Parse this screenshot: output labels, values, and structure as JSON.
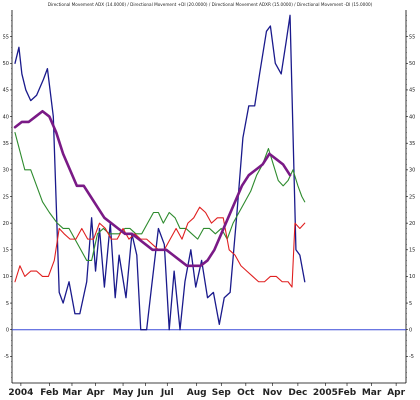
{
  "chart_data": {
    "type": "line",
    "title": "Directional Movement ADX (14.0000) / Directional Movement +DI (20.0000) / Directional Movement ADXR (15.0000) / Directional Movement -DI (15.0000)",
    "ylim": [
      -10,
      60
    ],
    "y_ticks": [
      -5,
      0,
      5,
      10,
      15,
      20,
      25,
      30,
      35,
      40,
      45,
      50,
      55
    ],
    "y_tick_labels": [
      "-5",
      "0",
      "5",
      "10",
      "15",
      "20",
      "25",
      "30",
      "35",
      "40",
      "45",
      "50",
      "55"
    ],
    "x_labels": [
      {
        "t": 0.6,
        "text": "2004"
      },
      {
        "t": 3.5,
        "text": "Feb"
      },
      {
        "t": 5.8,
        "text": "Mar"
      },
      {
        "t": 8.2,
        "text": "Apr"
      },
      {
        "t": 11.0,
        "text": "May"
      },
      {
        "t": 13.3,
        "text": "Jun"
      },
      {
        "t": 15.5,
        "text": "Jul"
      },
      {
        "t": 18.5,
        "text": "Aug"
      },
      {
        "t": 21.0,
        "text": "Sep"
      },
      {
        "t": 23.5,
        "text": "Oct"
      },
      {
        "t": 26.2,
        "text": "Nov"
      },
      {
        "t": 28.8,
        "text": "Dec"
      },
      {
        "t": 31.6,
        "text": "2005"
      },
      {
        "t": 33.8,
        "text": "Feb"
      },
      {
        "t": 36.3,
        "text": "Mar"
      },
      {
        "t": 38.8,
        "text": "Apr"
      }
    ],
    "x_range": [
      0,
      39.5
    ],
    "zero_line": 0,
    "series": [
      {
        "color": "#1a1a8c",
        "width": 1.3,
        "points": [
          [
            0,
            50
          ],
          [
            0.4,
            53
          ],
          [
            0.7,
            48
          ],
          [
            1.1,
            45
          ],
          [
            1.6,
            43
          ],
          [
            2.2,
            44
          ],
          [
            2.9,
            47
          ],
          [
            3.3,
            49
          ],
          [
            3.9,
            40
          ],
          [
            4.5,
            7
          ],
          [
            4.9,
            5
          ],
          [
            5.5,
            9
          ],
          [
            6.1,
            3
          ],
          [
            6.6,
            3
          ],
          [
            7.3,
            9
          ],
          [
            7.8,
            21
          ],
          [
            8.2,
            11
          ],
          [
            8.6,
            19
          ],
          [
            9.1,
            8
          ],
          [
            9.7,
            20
          ],
          [
            10.2,
            6
          ],
          [
            10.6,
            14
          ],
          [
            11.3,
            6
          ],
          [
            11.9,
            18
          ],
          [
            12.4,
            14
          ],
          [
            12.8,
            0
          ],
          [
            13.4,
            0
          ],
          [
            13.9,
            8
          ],
          [
            14.6,
            19
          ],
          [
            15.2,
            16
          ],
          [
            15.7,
            0
          ],
          [
            16.2,
            11
          ],
          [
            16.8,
            0
          ],
          [
            17.3,
            9
          ],
          [
            17.9,
            15
          ],
          [
            18.4,
            8
          ],
          [
            19.0,
            13
          ],
          [
            19.6,
            6
          ],
          [
            20.2,
            7
          ],
          [
            20.8,
            1
          ],
          [
            21.3,
            6
          ],
          [
            21.9,
            7
          ],
          [
            22.6,
            22
          ],
          [
            23.2,
            36
          ],
          [
            23.8,
            42
          ],
          [
            24.4,
            42
          ],
          [
            24.9,
            48
          ],
          [
            25.6,
            56
          ],
          [
            26.0,
            57
          ],
          [
            26.5,
            50
          ],
          [
            27.1,
            48
          ],
          [
            27.6,
            54
          ],
          [
            28.0,
            59
          ],
          [
            28.6,
            15
          ],
          [
            29.0,
            14
          ],
          [
            29.5,
            9
          ]
        ]
      },
      {
        "color": "#2e8b2e",
        "width": 1.1,
        "points": [
          [
            0,
            37
          ],
          [
            1.0,
            30
          ],
          [
            1.6,
            30
          ],
          [
            2.2,
            27
          ],
          [
            2.8,
            24
          ],
          [
            3.5,
            22
          ],
          [
            4.3,
            20
          ],
          [
            4.9,
            19
          ],
          [
            5.5,
            19
          ],
          [
            6.1,
            17
          ],
          [
            6.7,
            15
          ],
          [
            7.3,
            13
          ],
          [
            7.8,
            13
          ],
          [
            8.4,
            18
          ],
          [
            9.0,
            19
          ],
          [
            9.6,
            18
          ],
          [
            10.1,
            18
          ],
          [
            10.6,
            18
          ],
          [
            11.2,
            19
          ],
          [
            11.7,
            19
          ],
          [
            12.3,
            18
          ],
          [
            12.9,
            18
          ],
          [
            13.5,
            20
          ],
          [
            14.1,
            22
          ],
          [
            14.6,
            22
          ],
          [
            15.1,
            20
          ],
          [
            15.7,
            22
          ],
          [
            16.3,
            21
          ],
          [
            16.8,
            19
          ],
          [
            17.4,
            19
          ],
          [
            18.0,
            18
          ],
          [
            18.6,
            17
          ],
          [
            19.2,
            19
          ],
          [
            19.8,
            19
          ],
          [
            20.4,
            18
          ],
          [
            21.0,
            19
          ],
          [
            21.6,
            17
          ],
          [
            22.2,
            20
          ],
          [
            22.8,
            22
          ],
          [
            23.4,
            24
          ],
          [
            24.0,
            26
          ],
          [
            24.6,
            29
          ],
          [
            25.2,
            31
          ],
          [
            25.8,
            34
          ],
          [
            26.3,
            31
          ],
          [
            26.8,
            28
          ],
          [
            27.3,
            27
          ],
          [
            27.8,
            28
          ],
          [
            28.3,
            30
          ],
          [
            28.8,
            27
          ],
          [
            29.2,
            25
          ],
          [
            29.5,
            24
          ]
        ]
      },
      {
        "color": "#e02020",
        "width": 1.1,
        "points": [
          [
            0,
            9
          ],
          [
            0.5,
            12
          ],
          [
            1.0,
            10
          ],
          [
            1.6,
            11
          ],
          [
            2.2,
            11
          ],
          [
            2.8,
            10
          ],
          [
            3.4,
            10
          ],
          [
            4.0,
            13
          ],
          [
            4.5,
            19
          ],
          [
            5.0,
            18
          ],
          [
            5.6,
            17
          ],
          [
            6.2,
            17
          ],
          [
            6.8,
            19
          ],
          [
            7.4,
            17
          ],
          [
            8.0,
            17
          ],
          [
            8.6,
            20
          ],
          [
            9.2,
            19
          ],
          [
            9.8,
            17
          ],
          [
            10.4,
            17
          ],
          [
            11.0,
            19
          ],
          [
            11.6,
            17
          ],
          [
            12.2,
            18
          ],
          [
            12.8,
            17
          ],
          [
            13.4,
            17
          ],
          [
            14.0,
            16
          ],
          [
            14.6,
            15
          ],
          [
            15.2,
            15
          ],
          [
            15.8,
            17
          ],
          [
            16.4,
            19
          ],
          [
            17.0,
            17
          ],
          [
            17.6,
            20
          ],
          [
            18.2,
            21
          ],
          [
            18.8,
            23
          ],
          [
            19.4,
            22
          ],
          [
            20.0,
            20
          ],
          [
            20.6,
            21
          ],
          [
            21.2,
            21
          ],
          [
            21.8,
            15
          ],
          [
            22.4,
            14
          ],
          [
            23.0,
            12
          ],
          [
            23.6,
            11
          ],
          [
            24.2,
            10
          ],
          [
            24.8,
            9
          ],
          [
            25.4,
            9
          ],
          [
            26.0,
            10
          ],
          [
            26.6,
            10
          ],
          [
            27.2,
            9
          ],
          [
            27.8,
            9
          ],
          [
            28.2,
            8
          ],
          [
            28.5,
            20
          ],
          [
            29.0,
            19
          ],
          [
            29.5,
            20
          ]
        ]
      },
      {
        "color": "#7a1a86",
        "width": 2.6,
        "points": [
          [
            0,
            38
          ],
          [
            0.7,
            39
          ],
          [
            1.4,
            39
          ],
          [
            2.1,
            40
          ],
          [
            2.8,
            41
          ],
          [
            3.5,
            40
          ],
          [
            4.2,
            37
          ],
          [
            4.9,
            33
          ],
          [
            5.6,
            30
          ],
          [
            6.3,
            27
          ],
          [
            7.0,
            27
          ],
          [
            7.7,
            25
          ],
          [
            8.4,
            23
          ],
          [
            9.1,
            21
          ],
          [
            9.8,
            20
          ],
          [
            10.5,
            19
          ],
          [
            11.2,
            18
          ],
          [
            11.9,
            18
          ],
          [
            12.6,
            17
          ],
          [
            13.3,
            16
          ],
          [
            14.0,
            15
          ],
          [
            14.7,
            15
          ],
          [
            15.4,
            15
          ],
          [
            16.1,
            14
          ],
          [
            16.8,
            13
          ],
          [
            17.5,
            12
          ],
          [
            18.2,
            12
          ],
          [
            18.9,
            12
          ],
          [
            19.6,
            13
          ],
          [
            20.3,
            15
          ],
          [
            21.0,
            18
          ],
          [
            21.7,
            21
          ],
          [
            22.4,
            24
          ],
          [
            23.1,
            27
          ],
          [
            23.8,
            29
          ],
          [
            24.5,
            30
          ],
          [
            25.2,
            31
          ],
          [
            25.9,
            33
          ],
          [
            26.6,
            32
          ],
          [
            27.3,
            31
          ],
          [
            28.0,
            29
          ]
        ]
      }
    ]
  }
}
